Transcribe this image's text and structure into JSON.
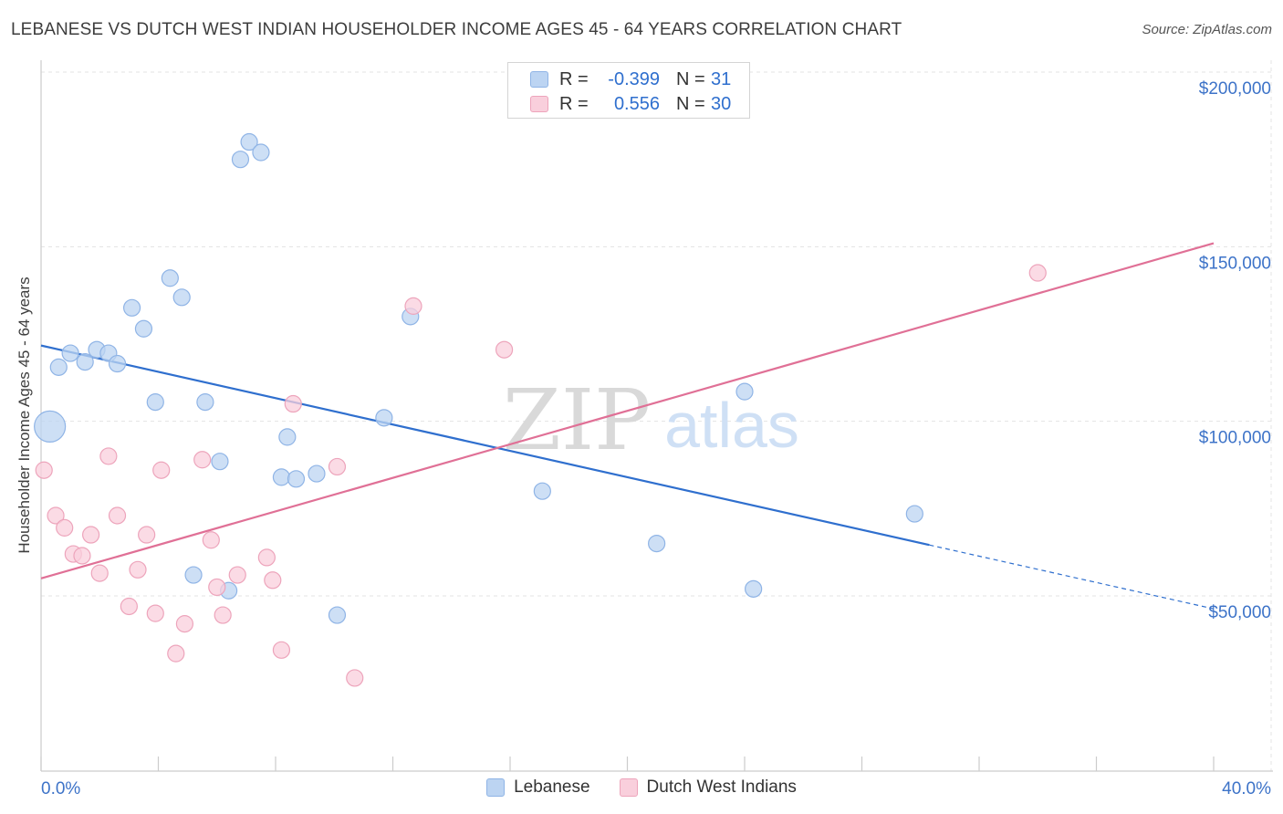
{
  "title": "LEBANESE VS DUTCH WEST INDIAN HOUSEHOLDER INCOME AGES 45 - 64 YEARS CORRELATION CHART",
  "source": "Source: ZipAtlas.com",
  "watermark": {
    "zip": "ZIP",
    "atlas": "atlas"
  },
  "legend": {
    "rows": [
      {
        "r_label": "R =",
        "r_value": "-0.399",
        "n_label": "N =",
        "n_value": "31"
      },
      {
        "r_label": "R =",
        "r_value": "0.556",
        "n_label": "N =",
        "n_value": "30"
      }
    ]
  },
  "bottom_legend": {
    "items": [
      "Lebanese",
      "Dutch West Indians"
    ]
  },
  "colors": {
    "blue_fill": "#bcd4f2",
    "blue_stroke": "#8fb4e6",
    "blue_line": "#2f6fce",
    "pink_fill": "#f9cfdc",
    "pink_stroke": "#eda4bb",
    "pink_line": "#e07096",
    "axis_text": "#3d73c8",
    "grid": "#e3e3e3"
  },
  "chart_data": {
    "type": "scatter",
    "title": "LEBANESE VS DUTCH WEST INDIAN HOUSEHOLDER INCOME AGES 45 - 64 YEARS CORRELATION CHART",
    "xlabel": "",
    "ylabel": "Householder Income Ages 45 - 64 years",
    "xlim": [
      0,
      40
    ],
    "ylim": [
      0,
      205000
    ],
    "x_tick_labels": [
      "0.0%",
      "40.0%"
    ],
    "y_ticks": [
      50000,
      100000,
      150000,
      200000
    ],
    "y_tick_labels": [
      "$50,000",
      "$100,000",
      "$150,000",
      "$200,000"
    ],
    "grid": true,
    "series": [
      {
        "name": "Lebanese",
        "r": -0.399,
        "n": 31,
        "points": [
          {
            "x": 0.3,
            "y": 98500,
            "big": true
          },
          {
            "x": 0.6,
            "y": 115500
          },
          {
            "x": 1.0,
            "y": 119500
          },
          {
            "x": 1.5,
            "y": 117000
          },
          {
            "x": 1.9,
            "y": 120500
          },
          {
            "x": 2.3,
            "y": 119500
          },
          {
            "x": 2.6,
            "y": 116500
          },
          {
            "x": 3.1,
            "y": 132500
          },
          {
            "x": 3.5,
            "y": 126500
          },
          {
            "x": 3.9,
            "y": 105500
          },
          {
            "x": 4.4,
            "y": 141000
          },
          {
            "x": 4.8,
            "y": 135500
          },
          {
            "x": 5.2,
            "y": 56000
          },
          {
            "x": 5.6,
            "y": 105500
          },
          {
            "x": 6.1,
            "y": 88500
          },
          {
            "x": 6.4,
            "y": 51500
          },
          {
            "x": 6.8,
            "y": 175000
          },
          {
            "x": 7.1,
            "y": 180000
          },
          {
            "x": 7.5,
            "y": 177000
          },
          {
            "x": 8.2,
            "y": 84000
          },
          {
            "x": 8.4,
            "y": 95500
          },
          {
            "x": 8.7,
            "y": 83500
          },
          {
            "x": 9.4,
            "y": 85000
          },
          {
            "x": 10.1,
            "y": 44500
          },
          {
            "x": 11.7,
            "y": 101000
          },
          {
            "x": 12.6,
            "y": 130000
          },
          {
            "x": 17.1,
            "y": 80000
          },
          {
            "x": 21.0,
            "y": 65000
          },
          {
            "x": 24.0,
            "y": 108500
          },
          {
            "x": 24.3,
            "y": 52000
          },
          {
            "x": 29.8,
            "y": 73500
          }
        ],
        "trend": {
          "x_start": 0,
          "y_start": 121700,
          "x_end": 40,
          "y_end": 46300,
          "solid_until_x": 30.3
        }
      },
      {
        "name": "Dutch West Indians",
        "r": 0.556,
        "n": 30,
        "points": [
          {
            "x": 0.1,
            "y": 86000
          },
          {
            "x": 0.5,
            "y": 73000
          },
          {
            "x": 0.8,
            "y": 69500
          },
          {
            "x": 1.1,
            "y": 62000
          },
          {
            "x": 1.4,
            "y": 61500
          },
          {
            "x": 1.7,
            "y": 67500
          },
          {
            "x": 2.0,
            "y": 56500
          },
          {
            "x": 2.3,
            "y": 90000
          },
          {
            "x": 2.6,
            "y": 73000
          },
          {
            "x": 3.0,
            "y": 47000
          },
          {
            "x": 3.3,
            "y": 57500
          },
          {
            "x": 3.6,
            "y": 67500
          },
          {
            "x": 3.9,
            "y": 45000
          },
          {
            "x": 4.1,
            "y": 86000
          },
          {
            "x": 4.6,
            "y": 33500
          },
          {
            "x": 4.9,
            "y": 42000
          },
          {
            "x": 5.5,
            "y": 89000
          },
          {
            "x": 5.8,
            "y": 66000
          },
          {
            "x": 6.0,
            "y": 52500
          },
          {
            "x": 6.2,
            "y": 44500
          },
          {
            "x": 6.7,
            "y": 56000
          },
          {
            "x": 7.7,
            "y": 61000
          },
          {
            "x": 7.9,
            "y": 54500
          },
          {
            "x": 8.2,
            "y": 34500
          },
          {
            "x": 8.6,
            "y": 105000
          },
          {
            "x": 10.1,
            "y": 87000
          },
          {
            "x": 10.7,
            "y": 26500
          },
          {
            "x": 12.7,
            "y": 133000
          },
          {
            "x": 15.8,
            "y": 120500
          },
          {
            "x": 34.0,
            "y": 142500
          }
        ],
        "trend": {
          "x_start": 0,
          "y_start": 55000,
          "x_end": 40,
          "y_end": 151000,
          "solid_until_x": 40
        }
      }
    ]
  }
}
